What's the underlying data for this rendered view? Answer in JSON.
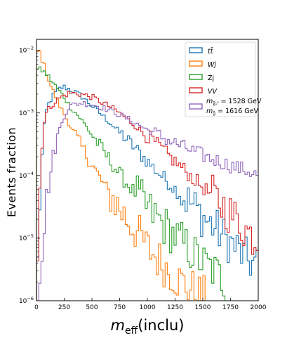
{
  "chart_data": {
    "type": "line",
    "drawstyle": "steps",
    "xlabel_main": "m",
    "xlabel_sub": "eff",
    "xlabel_suffix": "(inclu)",
    "ylabel": "Events fraction",
    "xlim": [
      0,
      2000
    ],
    "ylim": [
      1e-06,
      0.015
    ],
    "yscale": "log",
    "x_ticks": [
      0,
      250,
      500,
      750,
      1000,
      1250,
      1500,
      1750,
      2000
    ],
    "x_tick_labels": [
      "0",
      "250",
      "500",
      "750",
      "1000",
      "1250",
      "1500",
      "1750",
      "2000"
    ],
    "y_tick_values": [
      1e-06,
      1e-05,
      0.0001,
      0.001,
      0.01
    ],
    "y_tick_labels": [
      {
        "base": "10",
        "exp": "−6"
      },
      {
        "base": "10",
        "exp": "−5"
      },
      {
        "base": "10",
        "exp": "−4"
      },
      {
        "base": "10",
        "exp": "−3"
      },
      {
        "base": "10",
        "exp": "−2"
      }
    ],
    "bin_width": 20,
    "legend_position": "top-right",
    "series": [
      {
        "name": "tt̄",
        "color": "#1f77b4",
        "knots": [
          [
            0,
            1e-06
          ],
          [
            20,
            1.5e-05
          ],
          [
            40,
            0.0001
          ],
          [
            60,
            0.0004
          ],
          [
            80,
            0.0009
          ],
          [
            100,
            0.0013
          ],
          [
            150,
            0.0019
          ],
          [
            200,
            0.0024
          ],
          [
            250,
            0.0026
          ],
          [
            300,
            0.0024
          ],
          [
            400,
            0.0019
          ],
          [
            500,
            0.0013
          ],
          [
            600,
            0.0009
          ],
          [
            700,
            0.0006
          ],
          [
            800,
            0.0004
          ],
          [
            900,
            0.00026
          ],
          [
            1000,
            0.00017
          ],
          [
            1100,
            0.00011
          ],
          [
            1200,
            7.5e-05
          ],
          [
            1300,
            5e-05
          ],
          [
            1400,
            3.5e-05
          ],
          [
            1500,
            2.2e-05
          ],
          [
            1600,
            1.5e-05
          ],
          [
            1700,
            1e-05
          ],
          [
            1800,
            7e-06
          ],
          [
            1900,
            4.5e-06
          ],
          [
            2000,
            3.5e-06
          ]
        ]
      },
      {
        "name": "Wj",
        "color": "#ff7f0e",
        "knots": [
          [
            0,
            0.008
          ],
          [
            20,
            0.011
          ],
          [
            40,
            0.008
          ],
          [
            80,
            0.005
          ],
          [
            120,
            0.003
          ],
          [
            160,
            0.002
          ],
          [
            200,
            0.0014
          ],
          [
            250,
            0.00095
          ],
          [
            300,
            0.00065
          ],
          [
            350,
            0.00044
          ],
          [
            400,
            0.0003
          ],
          [
            500,
            0.00015
          ],
          [
            600,
            7.5e-05
          ],
          [
            700,
            4e-05
          ],
          [
            800,
            2.2e-05
          ],
          [
            900,
            1.3e-05
          ],
          [
            1000,
            7e-06
          ],
          [
            1100,
            4.5e-06
          ],
          [
            1200,
            3e-06
          ],
          [
            1300,
            2e-06
          ],
          [
            1400,
            1.5e-06
          ],
          [
            1500,
            1.2e-06
          ],
          [
            1560,
            1e-06
          ]
        ]
      },
      {
        "name": "Zj",
        "color": "#2ca02c",
        "knots": [
          [
            0,
            0.005
          ],
          [
            50,
            0.0048
          ],
          [
            100,
            0.004
          ],
          [
            150,
            0.003
          ],
          [
            200,
            0.0023
          ],
          [
            250,
            0.0018
          ],
          [
            300,
            0.0013
          ],
          [
            400,
            0.0008
          ],
          [
            500,
            0.00045
          ],
          [
            600,
            0.00025
          ],
          [
            700,
            0.00014
          ],
          [
            800,
            8e-05
          ],
          [
            900,
            5e-05
          ],
          [
            1000,
            3e-05
          ],
          [
            1100,
            2e-05
          ],
          [
            1200,
            1.3e-05
          ],
          [
            1300,
            9e-06
          ],
          [
            1400,
            6e-06
          ],
          [
            1500,
            4e-06
          ],
          [
            1600,
            3e-06
          ],
          [
            1700,
            2e-06
          ],
          [
            1760,
            1e-06
          ]
        ]
      },
      {
        "name": "VV",
        "color": "#d62728",
        "knots": [
          [
            0,
            1e-06
          ],
          [
            20,
            2e-05
          ],
          [
            40,
            0.0002
          ],
          [
            60,
            0.0006
          ],
          [
            80,
            0.0009
          ],
          [
            100,
            0.0011
          ],
          [
            150,
            0.0014
          ],
          [
            200,
            0.0017
          ],
          [
            250,
            0.0019
          ],
          [
            300,
            0.0021
          ],
          [
            400,
            0.002
          ],
          [
            500,
            0.0018
          ],
          [
            600,
            0.00145
          ],
          [
            700,
            0.00115
          ],
          [
            800,
            0.00085
          ],
          [
            900,
            0.0006
          ],
          [
            1000,
            0.00043
          ],
          [
            1100,
            0.0003
          ],
          [
            1200,
            0.0002
          ],
          [
            1300,
            0.00014
          ],
          [
            1400,
            9.5e-05
          ],
          [
            1500,
            6.5e-05
          ],
          [
            1600,
            4.5e-05
          ],
          [
            1700,
            3e-05
          ],
          [
            1800,
            2e-05
          ],
          [
            1900,
            1.3e-05
          ],
          [
            2000,
            9e-06
          ]
        ]
      },
      {
        "name": "m_{χ̃₁⁰} = 1528 GeV, m_{g̃} = 1616 GeV",
        "color": "#9467bd",
        "knots": [
          [
            0,
            1e-06
          ],
          [
            20,
            2e-06
          ],
          [
            50,
            8e-06
          ],
          [
            100,
            5e-05
          ],
          [
            150,
            0.0002
          ],
          [
            200,
            0.0005
          ],
          [
            250,
            0.0009
          ],
          [
            300,
            0.0013
          ],
          [
            400,
            0.00145
          ],
          [
            500,
            0.00138
          ],
          [
            600,
            0.00122
          ],
          [
            700,
            0.00103
          ],
          [
            800,
            0.00085
          ],
          [
            900,
            0.00068
          ],
          [
            1000,
            0.00054
          ],
          [
            1100,
            0.00044
          ],
          [
            1200,
            0.00036
          ],
          [
            1300,
            0.0003
          ],
          [
            1400,
            0.00025
          ],
          [
            1500,
            0.00021
          ],
          [
            1600,
            0.00018
          ],
          [
            1700,
            0.000155
          ],
          [
            1800,
            0.000135
          ],
          [
            1900,
            0.00012
          ],
          [
            2000,
            0.0001
          ]
        ]
      }
    ]
  },
  "legend": {
    "items": [
      {
        "key": "tt",
        "main": "t",
        "bar": "t̄",
        "color": "#1f77b4"
      },
      {
        "key": "wj",
        "text": "Wj",
        "color": "#ff7f0e"
      },
      {
        "key": "zj",
        "text": "Zj",
        "color": "#2ca02c"
      },
      {
        "key": "vv",
        "text": "VV",
        "color": "#d62728"
      }
    ],
    "signal": {
      "color": "#9467bd",
      "line1_m": "m",
      "line1_sub": "χ̃₁⁰",
      "line1_value": " = 1528 GeV",
      "line2_m": "m",
      "line2_sub": "g̃",
      "line2_value": " = 1616 GeV"
    }
  }
}
